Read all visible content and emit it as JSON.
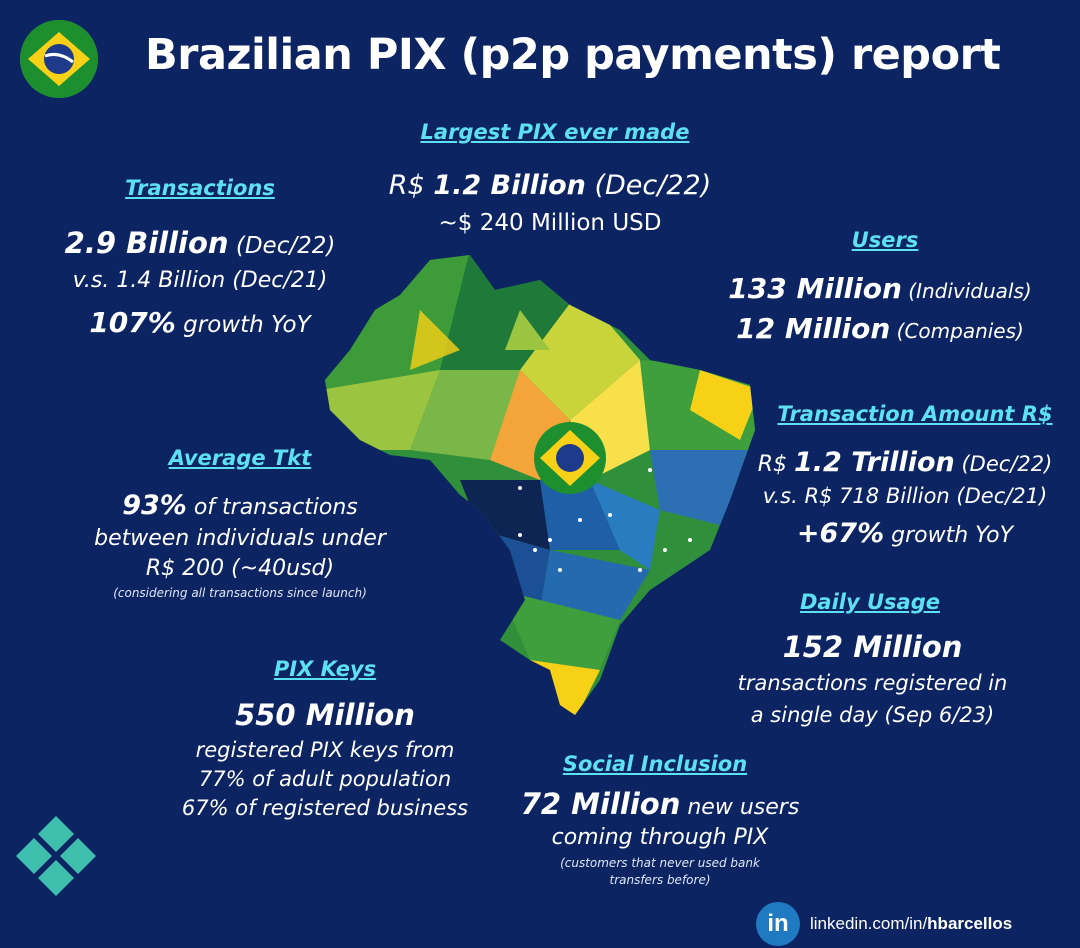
{
  "title": "Brazilian PIX (p2p payments) report",
  "colors": {
    "background": "#0d2462",
    "heading": "#5ee0f3",
    "flag_green": "#1e8f2f",
    "flag_yellow": "#f7d117",
    "flag_blue": "#1e3a8a",
    "pix_teal": "#3fbfae",
    "linkedin": "#1f7ac2"
  },
  "icons": {
    "flag": "brazil-flag-icon",
    "pix": "pix-logo-icon",
    "linkedin": "linkedin-icon"
  },
  "largest": {
    "heading": "Largest PIX ever made",
    "prefix": "R$ ",
    "value": "1.2 Billion",
    "suffix": " (Dec/22)",
    "usd": "~$ 240 Million USD"
  },
  "transactions": {
    "heading": "Transactions",
    "value": "2.9 Billion",
    "suffix": " (Dec/22)",
    "compare": "v.s. 1.4 Billion (Dec/21)",
    "growth_value": "107%",
    "growth_suffix": " growth YoY"
  },
  "users": {
    "heading": "Users",
    "individuals_value": "133 Million",
    "individuals_suffix": " (Individuals)",
    "companies_value": "12 Million",
    "companies_suffix": " (Companies)"
  },
  "amount": {
    "heading": "Transaction Amount R$",
    "prefix": "R$ ",
    "value": "1.2 Trillion",
    "suffix": " (Dec/22)",
    "compare": "v.s. R$ 718 Billion (Dec/21)",
    "growth_value": "+67%",
    "growth_suffix": " growth YoY"
  },
  "average": {
    "heading": "Average Tkt",
    "value": "93%",
    "suffix": " of transactions",
    "line2": "between individuals under",
    "line3": "R$ 200 (~40usd)",
    "note": "(considering all transactions since launch)"
  },
  "daily": {
    "heading": "Daily Usage",
    "value": "152 Million",
    "line2": "transactions registered in",
    "line3": "a single day (Sep 6/23)"
  },
  "keys": {
    "heading": "PIX Keys",
    "value": "550 Million",
    "line2": "registered PIX keys from",
    "line3": "77% of adult population",
    "line4": "67% of registered business"
  },
  "social": {
    "heading": "Social Inclusion",
    "value": "72 Million",
    "suffix": " new users",
    "line2": "coming through PIX",
    "note1": "(customers that never used bank",
    "note2": "transfers before)"
  },
  "linkedin": {
    "logo": "in",
    "prefix": "linkedin.com/in/",
    "handle": "hbarcellos"
  }
}
